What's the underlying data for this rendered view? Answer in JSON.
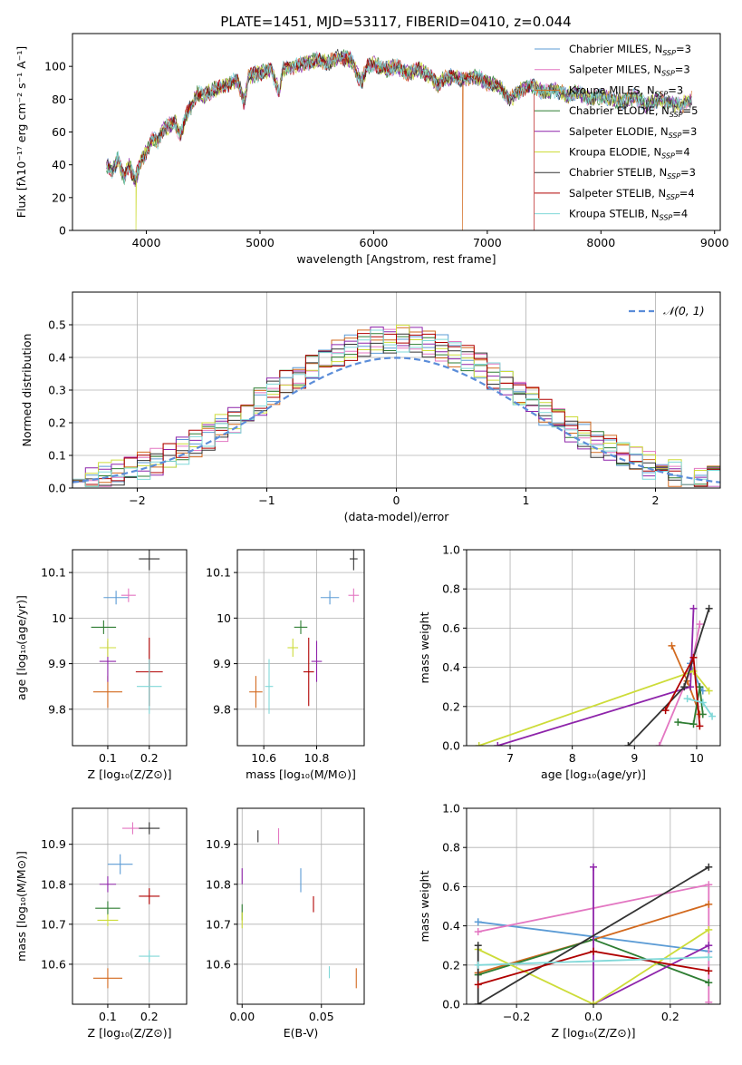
{
  "title": "PLATE=1451, MJD=53117, FIBERID=0410, z=0.044",
  "colors": [
    "#5b9bd5",
    "#e377c2",
    "#d2691e",
    "#2e7d32",
    "#8e24aa",
    "#cddc39",
    "#333333",
    "#b00000",
    "#80d8d8"
  ],
  "series_names": [
    {
      "base": "Chabrier MILES, N",
      "n": "3"
    },
    {
      "base": "Salpeter MILES, N",
      "n": "3"
    },
    {
      "base": "Kroupa MILES, N",
      "n": "3"
    },
    {
      "base": "Chabrier ELODIE, N",
      "n": "5"
    },
    {
      "base": "Salpeter ELODIE, N",
      "n": "3"
    },
    {
      "base": "Kroupa ELODIE, N",
      "n": "4"
    },
    {
      "base": "Chabrier STELIB, N",
      "n": "3"
    },
    {
      "base": "Salpeter STELIB, N",
      "n": "4"
    },
    {
      "base": "Kroupa STELIB, N",
      "n": "4"
    }
  ],
  "sub_ssp": "SSP",
  "legend_eq": "=",
  "chart_data": [
    {
      "id": "spectrum",
      "type": "line",
      "xlabel": "wavelength [Angstrom, rest frame]",
      "ylabel": "Flux [fλ10⁻¹⁷ erg cm⁻² s⁻¹ A⁻¹]",
      "xlim": [
        3350,
        9050
      ],
      "ylim": [
        0,
        120
      ],
      "xticks": [
        4000,
        5000,
        6000,
        7000,
        8000,
        9000
      ],
      "yticks": [
        0,
        20,
        40,
        60,
        80,
        100
      ],
      "wave": [
        3650,
        3700,
        3750,
        3800,
        3850,
        3900,
        3950,
        4000,
        4050,
        4100,
        4150,
        4200,
        4250,
        4300,
        4350,
        4400,
        4450,
        4500,
        4600,
        4700,
        4800,
        4860,
        4900,
        5000,
        5100,
        5170,
        5200,
        5300,
        5400,
        5500,
        5600,
        5700,
        5800,
        5890,
        5950,
        6000,
        6100,
        6200,
        6300,
        6400,
        6500,
        6563,
        6600,
        6700,
        6800,
        6900,
        7000,
        7100,
        7200,
        7300,
        7400,
        7500,
        7600,
        7700,
        7800,
        7900,
        8000,
        8100,
        8200,
        8300,
        8400,
        8500,
        8600,
        8700,
        8800
      ],
      "flux": [
        40,
        36,
        44,
        32,
        40,
        30,
        42,
        48,
        56,
        54,
        62,
        64,
        66,
        58,
        70,
        76,
        84,
        82,
        86,
        88,
        92,
        78,
        94,
        96,
        98,
        84,
        98,
        100,
        102,
        104,
        102,
        106,
        104,
        90,
        100,
        102,
        98,
        100,
        96,
        98,
        94,
        88,
        92,
        94,
        92,
        94,
        90,
        88,
        80,
        86,
        88,
        84,
        86,
        82,
        84,
        80,
        82,
        80,
        78,
        82,
        76,
        80,
        78,
        76,
        80
      ],
      "drops": [
        {
          "series": 5,
          "wave": 3910
        },
        {
          "series": 2,
          "wave": 6780
        },
        {
          "series": 7,
          "wave": 7410
        }
      ],
      "legend": "top-right"
    },
    {
      "id": "residuals",
      "type": "histogram",
      "xlabel": "(data-model)/error",
      "ylabel": "Normed distribution",
      "xlim": [
        -2.5,
        2.5
      ],
      "ylim": [
        0,
        0.6
      ],
      "xticks": [
        -2,
        -1,
        0,
        1,
        2
      ],
      "yticks": [
        0.0,
        0.1,
        0.2,
        0.3,
        0.4,
        0.5
      ],
      "bin_start": -2.5,
      "bin_width": 0.1,
      "normal_label": "𝒩(0, 1)",
      "legend": "top-right"
    },
    {
      "id": "age_vs_Z",
      "type": "scatter",
      "xlabel": "Z [log₁₀(Z/Z⊙)]",
      "ylabel": "age  [log₁₀(age/yr)]",
      "xlim": [
        0.015,
        0.29
      ],
      "ylim": [
        9.72,
        10.15
      ],
      "xticks": [
        0.1,
        0.2
      ],
      "yticks": [
        9.8,
        9.9,
        10.0,
        10.1
      ],
      "points": [
        {
          "x": 0.12,
          "y": 10.045,
          "xe": 0.06,
          "ye": 0.03
        },
        {
          "x": 0.15,
          "y": 10.05,
          "xe": 0.035,
          "ye": 0.03
        },
        {
          "x": 0.1,
          "y": 9.838,
          "xe": 0.07,
          "ye": 0.07
        },
        {
          "x": 0.09,
          "y": 9.98,
          "xe": 0.06,
          "ye": 0.03
        },
        {
          "x": 0.1,
          "y": 9.905,
          "xe": 0.04,
          "ye": 0.09
        },
        {
          "x": 0.1,
          "y": 9.935,
          "xe": 0.04,
          "ye": 0.04
        },
        {
          "x": 0.2,
          "y": 10.13,
          "xe": 0.05,
          "ye": 0.05
        },
        {
          "x": 0.2,
          "y": 9.882,
          "xe": 0.065,
          "ye": 0.15
        },
        {
          "x": 0.2,
          "y": 9.85,
          "xe": 0.06,
          "ye": 0.12
        }
      ]
    },
    {
      "id": "age_vs_mass",
      "type": "scatter",
      "xlabel": "mass [log₁₀(M/M⊙)]",
      "ylabel": "",
      "xlim": [
        10.5,
        10.98
      ],
      "ylim": [
        9.72,
        10.15
      ],
      "xticks": [
        10.6,
        10.8
      ],
      "yticks": [
        9.8,
        9.9,
        10.0,
        10.1
      ],
      "points": [
        {
          "x": 10.85,
          "y": 10.045,
          "xe": 0.07,
          "ye": 0.03
        },
        {
          "x": 10.94,
          "y": 10.05,
          "xe": 0.04,
          "ye": 0.03
        },
        {
          "x": 10.57,
          "y": 9.838,
          "xe": 0.05,
          "ye": 0.07
        },
        {
          "x": 10.74,
          "y": 9.98,
          "xe": 0.05,
          "ye": 0.03
        },
        {
          "x": 10.8,
          "y": 9.905,
          "xe": 0.04,
          "ye": 0.09
        },
        {
          "x": 10.71,
          "y": 9.935,
          "xe": 0.04,
          "ye": 0.04
        },
        {
          "x": 10.94,
          "y": 10.13,
          "xe": 0.03,
          "ye": 0.05
        },
        {
          "x": 10.77,
          "y": 9.882,
          "xe": 0.04,
          "ye": 0.15
        },
        {
          "x": 10.62,
          "y": 9.85,
          "xe": 0.03,
          "ye": 0.12
        }
      ]
    },
    {
      "id": "weights_vs_age",
      "type": "line",
      "xlabel": "age  [log₁₀(age/yr)]",
      "ylabel": "mass weight",
      "xlim": [
        6.3,
        10.38
      ],
      "ylim": [
        0,
        1.0
      ],
      "xticks": [
        7,
        8,
        9,
        10
      ],
      "yticks": [
        0.0,
        0.2,
        0.4,
        0.6,
        0.8,
        1.0
      ],
      "series": [
        {
          "x": [
            9.9,
            10.05,
            10.1
          ],
          "y": [
            0.42,
            0.3,
            0.28
          ]
        },
        {
          "x": [
            9.4,
            9.9,
            10.05
          ],
          "y": [
            0.0,
            0.38,
            0.62
          ]
        },
        {
          "x": [
            9.6,
            9.85,
            10.05
          ],
          "y": [
            0.51,
            0.33,
            0.16
          ]
        },
        {
          "x": [
            9.7,
            9.95,
            10.05,
            10.1
          ],
          "y": [
            0.12,
            0.11,
            0.3,
            0.16
          ]
        },
        {
          "x": [
            6.8,
            9.9,
            9.95
          ],
          "y": [
            0.0,
            0.3,
            0.7
          ]
        },
        {
          "x": [
            6.5,
            9.95,
            10.2
          ],
          "y": [
            0.0,
            0.38,
            0.28
          ]
        },
        {
          "x": [
            8.9,
            9.8,
            10.2
          ],
          "y": [
            0.0,
            0.3,
            0.7
          ]
        },
        {
          "x": [
            9.5,
            9.95,
            10.05
          ],
          "y": [
            0.18,
            0.45,
            0.1
          ]
        },
        {
          "x": [
            9.85,
            10.1,
            10.25
          ],
          "y": [
            0.24,
            0.22,
            0.15
          ]
        }
      ]
    },
    {
      "id": "mass_vs_Z",
      "type": "scatter",
      "xlabel": "Z [log₁₀(Z/Z⊙)]",
      "ylabel": "mass [log₁₀(M/M⊙)]",
      "xlim": [
        0.015,
        0.29
      ],
      "ylim": [
        10.5,
        10.99
      ],
      "xticks": [
        0.1,
        0.2
      ],
      "yticks": [
        10.6,
        10.7,
        10.8,
        10.9
      ],
      "points": [
        {
          "x": 0.13,
          "y": 10.85,
          "xe": 0.06,
          "ye": 0.05
        },
        {
          "x": 0.16,
          "y": 10.94,
          "xe": 0.05,
          "ye": 0.03
        },
        {
          "x": 0.1,
          "y": 10.565,
          "xe": 0.07,
          "ye": 0.05
        },
        {
          "x": 0.1,
          "y": 10.74,
          "xe": 0.06,
          "ye": 0.035
        },
        {
          "x": 0.1,
          "y": 10.8,
          "xe": 0.04,
          "ye": 0.04
        },
        {
          "x": 0.1,
          "y": 10.71,
          "xe": 0.05,
          "ye": 0.03
        },
        {
          "x": 0.2,
          "y": 10.94,
          "xe": 0.05,
          "ye": 0.03
        },
        {
          "x": 0.2,
          "y": 10.77,
          "xe": 0.05,
          "ye": 0.04
        },
        {
          "x": 0.2,
          "y": 10.62,
          "xe": 0.05,
          "ye": 0.03
        }
      ]
    },
    {
      "id": "mass_vs_ebv",
      "type": "scatter",
      "xlabel": "E(B-V)",
      "ylabel": "",
      "xlim": [
        -0.003,
        0.077
      ],
      "ylim": [
        10.5,
        10.99
      ],
      "xticks": [
        0.0,
        0.05
      ],
      "xtick_labels": [
        "0.00",
        "0.05"
      ],
      "yticks": [
        10.6,
        10.7,
        10.8,
        10.9
      ],
      "points": [
        {
          "x": 0.037,
          "y": 10.81,
          "xe": 0,
          "ye": 0.06
        },
        {
          "x": 0.023,
          "y": 10.92,
          "xe": 0,
          "ye": 0.04
        },
        {
          "x": 0.072,
          "y": 10.565,
          "xe": 0,
          "ye": 0.05
        },
        {
          "x": 0.0,
          "y": 10.73,
          "xe": 0,
          "ye": 0.04
        },
        {
          "x": 0.0,
          "y": 10.82,
          "xe": 0,
          "ye": 0.04
        },
        {
          "x": 0.0,
          "y": 10.71,
          "xe": 0,
          "ye": 0.04
        },
        {
          "x": 0.01,
          "y": 10.92,
          "xe": 0,
          "ye": 0.03
        },
        {
          "x": 0.045,
          "y": 10.75,
          "xe": 0,
          "ye": 0.04
        },
        {
          "x": 0.055,
          "y": 10.58,
          "xe": 0,
          "ye": 0.03
        }
      ]
    },
    {
      "id": "weights_vs_Z",
      "type": "line",
      "xlabel": "Z [log₁₀(Z/Z⊙)]",
      "ylabel": "mass weight",
      "xlim": [
        -0.33,
        0.33
      ],
      "ylim": [
        0,
        1.0
      ],
      "xticks": [
        -0.2,
        0.0,
        0.2
      ],
      "xtick_labels": [
        "−0.2",
        "0.0",
        "0.2"
      ],
      "yticks": [
        0.0,
        0.2,
        0.4,
        0.6,
        0.8,
        1.0
      ],
      "series": [
        {
          "x": [
            -0.3,
            0.3
          ],
          "y": [
            0.42,
            0.27
          ]
        },
        {
          "x": [
            -0.3,
            0.3,
            0.3
          ],
          "y": [
            0.37,
            0.61,
            0.01
          ]
        },
        {
          "x": [
            -0.3,
            0.0,
            0.3
          ],
          "y": [
            0.16,
            0.33,
            0.51
          ]
        },
        {
          "x": [
            -0.3,
            0.0,
            0.3
          ],
          "y": [
            0.15,
            0.33,
            0.11
          ]
        },
        {
          "x": [
            0.0,
            0.0,
            0.3
          ],
          "y": [
            0.7,
            0.0,
            0.3
          ]
        },
        {
          "x": [
            -0.3,
            0.0,
            0.3
          ],
          "y": [
            0.28,
            0.0,
            0.38
          ]
        },
        {
          "x": [
            -0.3,
            -0.3,
            0.3
          ],
          "y": [
            0.3,
            0.0,
            0.7
          ]
        },
        {
          "x": [
            -0.3,
            0.0,
            0.3
          ],
          "y": [
            0.1,
            0.27,
            0.17
          ]
        },
        {
          "x": [
            -0.3,
            0.3
          ],
          "y": [
            0.2,
            0.24
          ]
        }
      ]
    }
  ]
}
